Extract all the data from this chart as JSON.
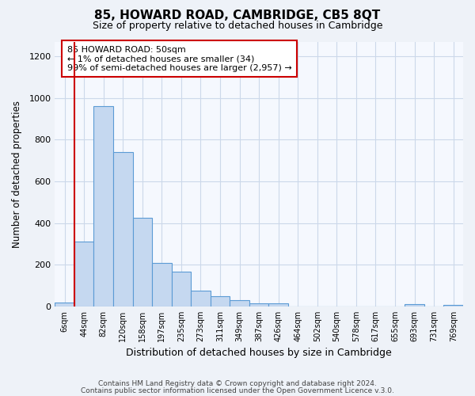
{
  "title": "85, HOWARD ROAD, CAMBRIDGE, CB5 8QT",
  "subtitle": "Size of property relative to detached houses in Cambridge",
  "xlabel": "Distribution of detached houses by size in Cambridge",
  "ylabel": "Number of detached properties",
  "bin_labels": [
    "6sqm",
    "44sqm",
    "82sqm",
    "120sqm",
    "158sqm",
    "197sqm",
    "235sqm",
    "273sqm",
    "311sqm",
    "349sqm",
    "387sqm",
    "426sqm",
    "464sqm",
    "502sqm",
    "540sqm",
    "578sqm",
    "617sqm",
    "655sqm",
    "693sqm",
    "731sqm",
    "769sqm"
  ],
  "bar_heights": [
    20,
    310,
    960,
    740,
    425,
    210,
    165,
    75,
    50,
    30,
    15,
    15,
    0,
    0,
    0,
    0,
    0,
    0,
    10,
    0,
    7
  ],
  "bar_color": "#c5d8f0",
  "bar_edge_color": "#5b9bd5",
  "vline_x": 0.5,
  "vline_color": "#cc0000",
  "annotation_text": "85 HOWARD ROAD: 50sqm\n← 1% of detached houses are smaller (34)\n99% of semi-detached houses are larger (2,957) →",
  "annotation_box_color": "#ffffff",
  "annotation_box_edge": "#cc0000",
  "ylim": [
    0,
    1270
  ],
  "yticks": [
    0,
    200,
    400,
    600,
    800,
    1000,
    1200
  ],
  "footer1": "Contains HM Land Registry data © Crown copyright and database right 2024.",
  "footer2": "Contains public sector information licensed under the Open Government Licence v.3.0.",
  "bg_color": "#eef2f8",
  "plot_bg_color": "#f5f8fe",
  "grid_color": "#ccd8ea",
  "title_fontsize": 11,
  "subtitle_fontsize": 9
}
